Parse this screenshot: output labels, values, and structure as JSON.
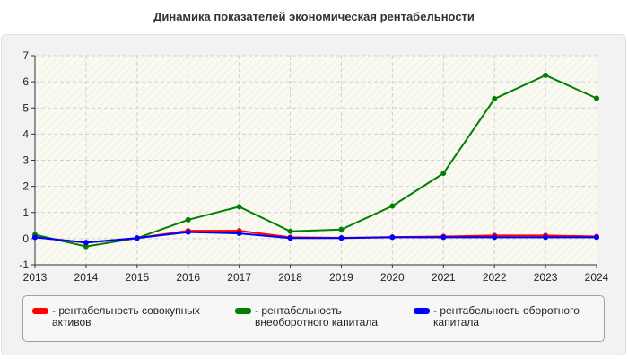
{
  "chart_data": {
    "type": "line",
    "title": "Динамика показателей экономическая рентабельности",
    "x": [
      "2013",
      "2014",
      "2015",
      "2016",
      "2017",
      "2018",
      "2019",
      "2020",
      "2021",
      "2022",
      "2023",
      "2024"
    ],
    "ylim": [
      -1,
      7
    ],
    "yticks": [
      "-1",
      "0",
      "1",
      "2",
      "3",
      "4",
      "5",
      "6",
      "7"
    ],
    "grid": true,
    "legend_position": "bottom",
    "series": [
      {
        "name": "- рентабельность совокупных активов",
        "color": "#ff0000",
        "values": [
          0.05,
          -0.15,
          0.02,
          0.3,
          0.3,
          0.05,
          0.03,
          0.06,
          0.08,
          0.12,
          0.12,
          0.08
        ]
      },
      {
        "name": "- рентабельность внеоборотного капитала",
        "color": "#008000",
        "values": [
          0.15,
          -0.3,
          0.02,
          0.72,
          1.22,
          0.28,
          0.35,
          1.25,
          2.5,
          5.35,
          6.25,
          5.37
        ]
      },
      {
        "name": "- рентабельность оборотного капитала",
        "color": "#0000ff",
        "values": [
          0.05,
          -0.15,
          0.02,
          0.25,
          0.2,
          0.02,
          0.02,
          0.05,
          0.05,
          0.05,
          0.05,
          0.05
        ]
      }
    ]
  }
}
